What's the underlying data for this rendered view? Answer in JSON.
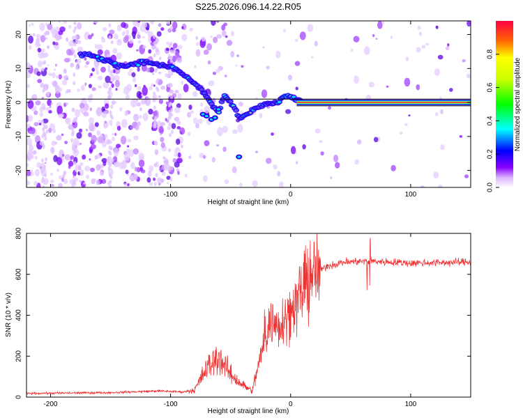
{
  "title": "S225.2026.096.14.22.R05",
  "chart_data": [
    {
      "type": "heatmap",
      "xlabel": "Height of straight line (km)",
      "ylabel": "Frequency (Hz)",
      "xlim": [
        -220,
        150
      ],
      "ylim": [
        -25,
        24
      ],
      "xticks": [
        -200,
        -100,
        0,
        100
      ],
      "yticks": [
        -20,
        -10,
        0,
        10,
        20
      ],
      "colorbar": {
        "label": "Normalized spectral amplitude",
        "range": [
          0,
          1
        ],
        "ticks": [
          0.0,
          0.2,
          0.4,
          0.6,
          0.8
        ]
      },
      "main_track": [
        {
          "x": -170,
          "y": 14
        },
        {
          "x": -160,
          "y": 13
        },
        {
          "x": -150,
          "y": 12
        },
        {
          "x": -140,
          "y": 10.5
        },
        {
          "x": -130,
          "y": 11.5
        },
        {
          "x": -120,
          "y": 12
        },
        {
          "x": -110,
          "y": 11
        },
        {
          "x": -100,
          "y": 10.5
        },
        {
          "x": -92,
          "y": 9
        },
        {
          "x": -85,
          "y": 7
        },
        {
          "x": -78,
          "y": 5
        },
        {
          "x": -70,
          "y": 2
        },
        {
          "x": -65,
          "y": -1
        },
        {
          "x": -60,
          "y": -3
        },
        {
          "x": -55,
          "y": 2
        },
        {
          "x": -48,
          "y": -1
        },
        {
          "x": -42,
          "y": -4.5
        },
        {
          "x": -35,
          "y": -3
        },
        {
          "x": -28,
          "y": -1.5
        },
        {
          "x": -20,
          "y": -0.5
        },
        {
          "x": -12,
          "y": 0
        },
        {
          "x": -5,
          "y": 1.5
        },
        {
          "x": 0,
          "y": 2
        },
        {
          "x": 5,
          "y": 0.5
        },
        {
          "x": 10,
          "y": 0
        },
        {
          "x": 150,
          "y": 0
        }
      ]
    },
    {
      "type": "line",
      "xlabel": "Height of straight line (km)",
      "ylabel": "SNR (10 * v/v)",
      "xlim": [
        -220,
        150
      ],
      "ylim": [
        0,
        800
      ],
      "xticks": [
        -200,
        -100,
        0,
        100
      ],
      "yticks": [
        0,
        200,
        400,
        600,
        800
      ],
      "series": [
        {
          "name": "SNR",
          "color": "#ee3333",
          "envelope": [
            {
              "x": -220,
              "y": 18
            },
            {
              "x": -150,
              "y": 22
            },
            {
              "x": -110,
              "y": 30
            },
            {
              "x": -90,
              "y": 25
            },
            {
              "x": -80,
              "y": 35
            },
            {
              "x": -70,
              "y": 140
            },
            {
              "x": -60,
              "y": 200
            },
            {
              "x": -50,
              "y": 110
            },
            {
              "x": -40,
              "y": 60
            },
            {
              "x": -32,
              "y": 30
            },
            {
              "x": -25,
              "y": 200
            },
            {
              "x": -18,
              "y": 360
            },
            {
              "x": -10,
              "y": 360
            },
            {
              "x": 0,
              "y": 420
            },
            {
              "x": 10,
              "y": 520
            },
            {
              "x": 20,
              "y": 600
            },
            {
              "x": 30,
              "y": 640
            },
            {
              "x": 45,
              "y": 660
            },
            {
              "x": 65,
              "y": 665
            },
            {
              "x": 100,
              "y": 655
            },
            {
              "x": 150,
              "y": 660
            }
          ]
        }
      ]
    }
  ]
}
